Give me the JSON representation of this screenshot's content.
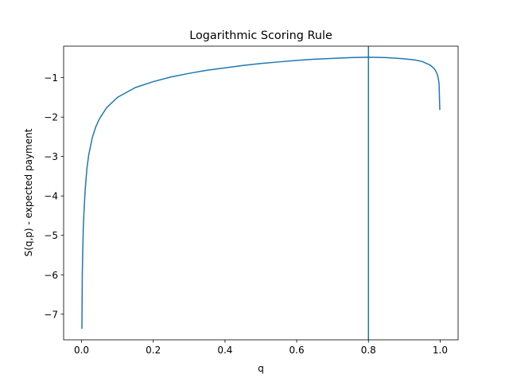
{
  "chart_data": {
    "type": "line",
    "title": "Logarithmic Scoring Rule",
    "xlabel": "q",
    "ylabel": "S(q,p) - expected payment",
    "xlim": [
      -0.05,
      1.05
    ],
    "ylim": [
      -7.65,
      -0.2
    ],
    "xticks": [
      0.0,
      0.2,
      0.4,
      0.6,
      0.8,
      1.0
    ],
    "xtick_labels": [
      "0.0",
      "0.2",
      "0.4",
      "0.6",
      "0.8",
      "1.0"
    ],
    "yticks": [
      -1,
      -2,
      -3,
      -4,
      -5,
      -6,
      -7
    ],
    "ytick_labels": [
      "−1",
      "−2",
      "−3",
      "−4",
      "−5",
      "−6",
      "−7"
    ],
    "grid": false,
    "series": [
      {
        "color": "#1f77b4",
        "x": [
          0.001,
          0.002,
          0.003,
          0.005,
          0.007,
          0.01,
          0.015,
          0.02,
          0.03,
          0.04,
          0.05,
          0.07,
          0.1,
          0.15,
          0.2,
          0.25,
          0.3,
          0.35,
          0.4,
          0.45,
          0.5,
          0.55,
          0.6,
          0.65,
          0.7,
          0.75,
          0.8,
          0.85,
          0.9,
          0.93,
          0.95,
          0.97,
          0.98,
          0.985,
          0.99,
          0.993,
          0.995,
          0.997,
          0.999
        ],
        "y": [
          -7.37,
          -6.03,
          -5.53,
          -4.76,
          -4.36,
          -3.86,
          -3.3,
          -2.96,
          -2.52,
          -2.24,
          -2.04,
          -1.76,
          -1.5,
          -1.25,
          -1.1,
          -0.98,
          -0.89,
          -0.81,
          -0.75,
          -0.69,
          -0.64,
          -0.6,
          -0.56,
          -0.53,
          -0.51,
          -0.49,
          -0.48,
          -0.49,
          -0.52,
          -0.55,
          -0.59,
          -0.67,
          -0.74,
          -0.79,
          -0.87,
          -0.95,
          -1.03,
          -1.16,
          -1.82
        ]
      }
    ],
    "vline": {
      "x": 0.8,
      "color": "#1f77b4"
    }
  }
}
